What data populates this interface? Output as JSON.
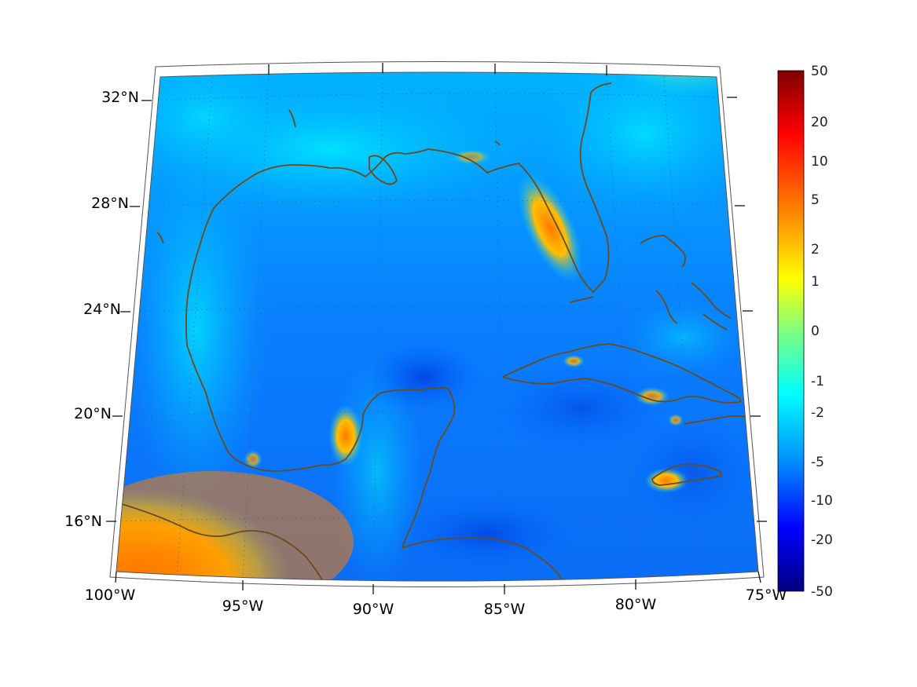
{
  "map": {
    "lat_labels": [
      "32°N",
      "28°N",
      "24°N",
      "20°N",
      "16°N"
    ],
    "lon_labels": [
      "100°W",
      "95°W",
      "90°W",
      "85°W",
      "80°W",
      "75°W"
    ],
    "extent": {
      "lon_min": -100,
      "lon_max": -75,
      "lat_min": 14,
      "lat_max": 33
    },
    "coastline_color": "#6b4a1e",
    "gridlines": "dotted"
  },
  "colorbar": {
    "labels": [
      "50",
      "20",
      "10",
      "5",
      "2",
      "1",
      "0",
      "-1",
      "-2",
      "-5",
      "-10",
      "-20",
      "-50"
    ],
    "colors": [
      "#800000",
      "#ff0000",
      "#ff8000",
      "#ffff00",
      "#80ff80",
      "#00ffff",
      "#0080ff",
      "#0000ff",
      "#000080"
    ]
  }
}
